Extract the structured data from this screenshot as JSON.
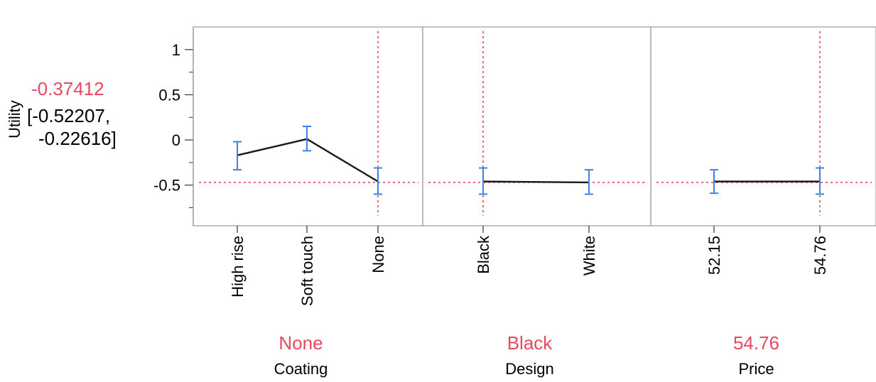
{
  "chart_data": {
    "type": "line",
    "title": "",
    "ylabel": "Utility",
    "ylim": [
      -0.95,
      1.25
    ],
    "yticks": [
      1,
      0.5,
      0,
      -0.5
    ],
    "yticks_labels": [
      "1",
      "0.5",
      "0",
      "-0.5"
    ],
    "prediction": {
      "value_label": "-0.37412",
      "ci_line1": "[-0.52207,",
      "ci_line2": "-0.22616]"
    },
    "reference_y": -0.47,
    "factors": [
      {
        "name": "Coating",
        "current": "None",
        "categories": [
          "High rise",
          "Soft touch",
          "None"
        ],
        "values": [
          -0.17,
          0.01,
          -0.46
        ],
        "lower": [
          -0.33,
          -0.12,
          -0.6
        ],
        "upper": [
          -0.02,
          0.15,
          -0.31
        ],
        "current_index": 2
      },
      {
        "name": "Design",
        "current": "Black",
        "categories": [
          "Black",
          "White"
        ],
        "values": [
          -0.46,
          -0.47
        ],
        "lower": [
          -0.6,
          -0.6
        ],
        "upper": [
          -0.31,
          -0.33
        ],
        "current_index": 0
      },
      {
        "name": "Price",
        "current": "54.76",
        "categories": [
          "52.15",
          "54.76"
        ],
        "values": [
          -0.46,
          -0.46
        ],
        "lower": [
          -0.59,
          -0.6
        ],
        "upper": [
          -0.33,
          -0.31
        ],
        "current_index": 1
      }
    ]
  },
  "colors": {
    "current": "#e8485f",
    "ci_bar": "#3b84e6",
    "line": "#1a1a1a",
    "frame": "#9a9a9a"
  }
}
